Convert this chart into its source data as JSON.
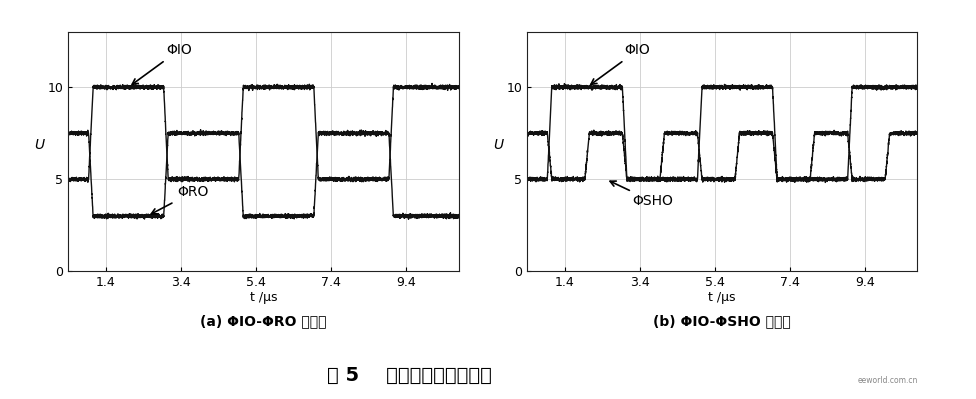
{
  "fig_width": 9.76,
  "fig_height": 3.99,
  "dpi": 100,
  "bg_color": "#ffffff",
  "panel_bg": "#ffffff",
  "line_color": "#111111",
  "grid_color": "#cccccc",
  "xlim": [
    0.4,
    10.8
  ],
  "ylim": [
    0,
    13
  ],
  "xticks": [
    1.4,
    3.4,
    5.4,
    7.4,
    9.4
  ],
  "yticks": [
    0,
    5,
    10
  ],
  "xlabel": "t /μs",
  "ylabel": "U",
  "subtitle_a": "(a) ΦIO-ΦRO 波形图",
  "subtitle_b": "(b) ΦIO-ΦSHO 波形图",
  "main_title": "图 5    驱动脉冲实测波形图",
  "phi_io_label": "ΦIO",
  "phi_ro_label": "ΦRO",
  "phi_sho_label": "ΦSHO",
  "phi_io_high": 10.0,
  "phi_io_low": 5.0,
  "phi_ro_high": 7.5,
  "phi_ro_low": 3.0,
  "phi_sho_high": 7.5,
  "phi_sho_low": 5.0,
  "rise_time": 0.12
}
